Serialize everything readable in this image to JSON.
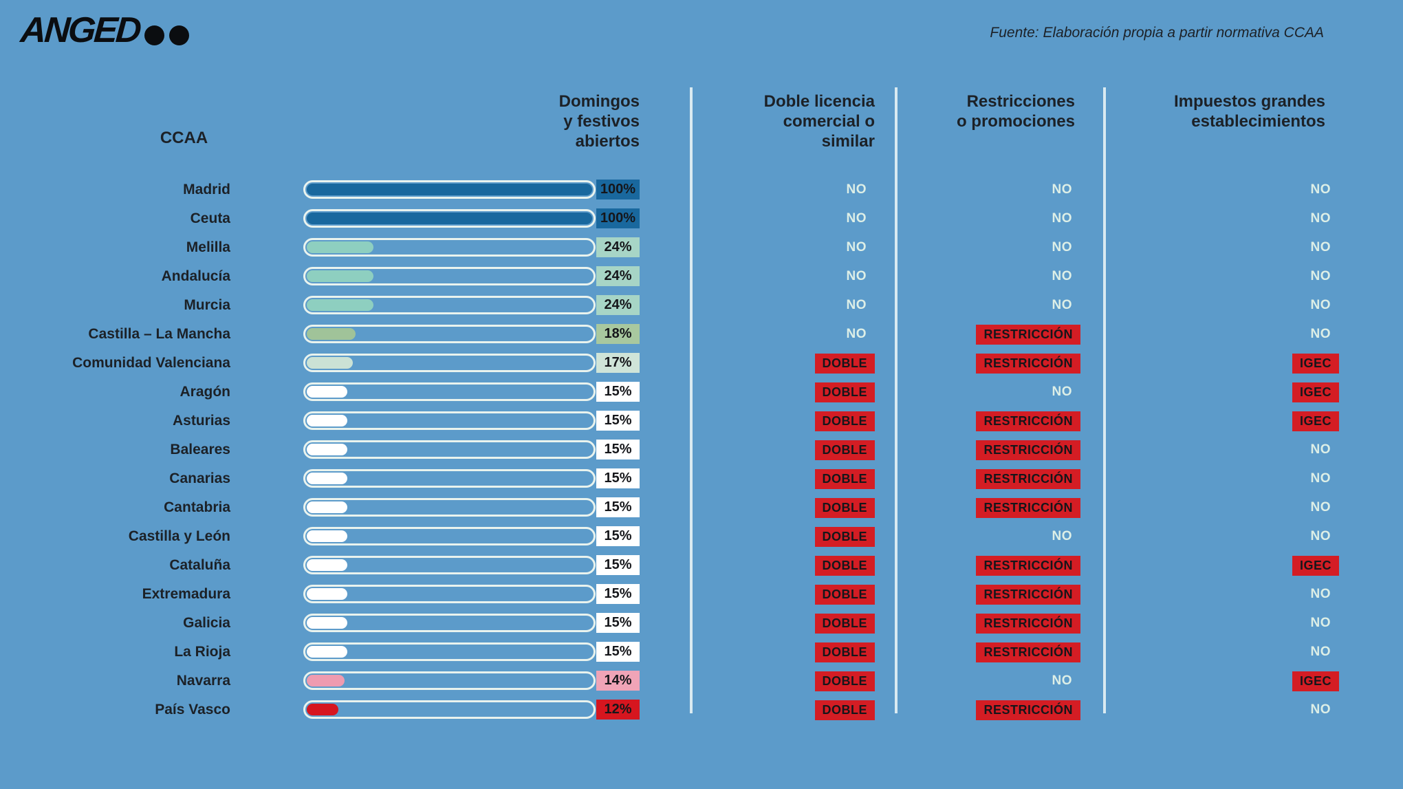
{
  "page": {
    "background": "#5c9bca",
    "separator_color": "#d9eaf1",
    "no_text_color": "#ddefe7",
    "flag_red": "#d41d24"
  },
  "header": {
    "logo_text": "ANGED",
    "source_note": "Fuente: Elaboración propia a partir normativa CCAA"
  },
  "table": {
    "columns": {
      "ccaa": "CCAA",
      "open_days": "Domingos\ny festivos\nabiertos",
      "doble": "Doble licencia\ncomercial o\nsimilar",
      "restricciones": "Restricciones\no promociones",
      "impuestos": "Impuestos grandes\nestablecimientos"
    }
  },
  "chart_data": {
    "type": "bar",
    "title": "Domingos y festivos abiertos",
    "xlabel": "",
    "ylabel": "",
    "xlim": [
      0,
      100
    ],
    "categories": [
      "Madrid",
      "Ceuta",
      "Melilla",
      "Andalucía",
      "Murcia",
      "Castilla – La Mancha",
      "Comunidad Valenciana",
      "Aragón",
      "Asturias",
      "Baleares",
      "Canarias",
      "Cantabria",
      "Castilla y León",
      "Cataluña",
      "Extremadura",
      "Galicia",
      "La Rioja",
      "Navarra",
      "País Vasco"
    ],
    "values": [
      100,
      100,
      24,
      24,
      24,
      18,
      17,
      15,
      15,
      15,
      15,
      15,
      15,
      15,
      15,
      15,
      15,
      14,
      12
    ],
    "rows": [
      {
        "name": "Madrid",
        "pct": 100,
        "pct_label": "100%",
        "fill": "#19689e",
        "badge_bg": "#19689e",
        "licencia": "NO",
        "restricciones": "NO",
        "impuestos": "NO"
      },
      {
        "name": "Ceuta",
        "pct": 100,
        "pct_label": "100%",
        "fill": "#19689e",
        "badge_bg": "#19689e",
        "licencia": "NO",
        "restricciones": "NO",
        "impuestos": "NO"
      },
      {
        "name": "Melilla",
        "pct": 24,
        "pct_label": "24%",
        "fill": "#8ecfc0",
        "badge_bg": "#a7d5c6",
        "licencia": "NO",
        "restricciones": "NO",
        "impuestos": "NO"
      },
      {
        "name": "Andalucía",
        "pct": 24,
        "pct_label": "24%",
        "fill": "#8ecfc0",
        "badge_bg": "#a7d5c6",
        "licencia": "NO",
        "restricciones": "NO",
        "impuestos": "NO"
      },
      {
        "name": "Murcia",
        "pct": 24,
        "pct_label": "24%",
        "fill": "#8ecfc0",
        "badge_bg": "#a7d5c6",
        "licencia": "NO",
        "restricciones": "NO",
        "impuestos": "NO"
      },
      {
        "name": "Castilla – La Mancha",
        "pct": 18,
        "pct_label": "18%",
        "fill": "#a0c399",
        "badge_bg": "#a8c89f",
        "licencia": "NO",
        "restricciones": "RESTRICCIÓN",
        "impuestos": "NO"
      },
      {
        "name": "Comunidad Valenciana",
        "pct": 17,
        "pct_label": "17%",
        "fill": "#cbe2d5",
        "badge_bg": "#cfe4d8",
        "licencia": "DOBLE",
        "restricciones": "RESTRICCIÓN",
        "impuestos": "IGEC"
      },
      {
        "name": "Aragón",
        "pct": 15,
        "pct_label": "15%",
        "fill": "#ffffff",
        "badge_bg": "#ffffff",
        "licencia": "DOBLE",
        "restricciones": "NO",
        "impuestos": "IGEC"
      },
      {
        "name": "Asturias",
        "pct": 15,
        "pct_label": "15%",
        "fill": "#ffffff",
        "badge_bg": "#ffffff",
        "licencia": "DOBLE",
        "restricciones": "RESTRICCIÓN",
        "impuestos": "IGEC"
      },
      {
        "name": "Baleares",
        "pct": 15,
        "pct_label": "15%",
        "fill": "#ffffff",
        "badge_bg": "#ffffff",
        "licencia": "DOBLE",
        "restricciones": "RESTRICCIÓN",
        "impuestos": "NO"
      },
      {
        "name": "Canarias",
        "pct": 15,
        "pct_label": "15%",
        "fill": "#ffffff",
        "badge_bg": "#ffffff",
        "licencia": "DOBLE",
        "restricciones": "RESTRICCIÓN",
        "impuestos": "NO"
      },
      {
        "name": "Cantabria",
        "pct": 15,
        "pct_label": "15%",
        "fill": "#ffffff",
        "badge_bg": "#ffffff",
        "licencia": "DOBLE",
        "restricciones": "RESTRICCIÓN",
        "impuestos": "NO"
      },
      {
        "name": "Castilla y León",
        "pct": 15,
        "pct_label": "15%",
        "fill": "#ffffff",
        "badge_bg": "#ffffff",
        "licencia": "DOBLE",
        "restricciones": "NO",
        "impuestos": "NO"
      },
      {
        "name": "Cataluña",
        "pct": 15,
        "pct_label": "15%",
        "fill": "#ffffff",
        "badge_bg": "#ffffff",
        "licencia": "DOBLE",
        "restricciones": "RESTRICCIÓN",
        "impuestos": "IGEC"
      },
      {
        "name": "Extremadura",
        "pct": 15,
        "pct_label": "15%",
        "fill": "#ffffff",
        "badge_bg": "#ffffff",
        "licencia": "DOBLE",
        "restricciones": "RESTRICCIÓN",
        "impuestos": "NO"
      },
      {
        "name": "Galicia",
        "pct": 15,
        "pct_label": "15%",
        "fill": "#ffffff",
        "badge_bg": "#ffffff",
        "licencia": "DOBLE",
        "restricciones": "RESTRICCIÓN",
        "impuestos": "NO"
      },
      {
        "name": "La Rioja",
        "pct": 15,
        "pct_label": "15%",
        "fill": "#ffffff",
        "badge_bg": "#ffffff",
        "licencia": "DOBLE",
        "restricciones": "RESTRICCIÓN",
        "impuestos": "NO"
      },
      {
        "name": "Navarra",
        "pct": 14,
        "pct_label": "14%",
        "fill": "#ee9bb0",
        "badge_bg": "#f0a4b7",
        "licencia": "DOBLE",
        "restricciones": "NO",
        "impuestos": "IGEC"
      },
      {
        "name": "País Vasco",
        "pct": 12,
        "pct_label": "12%",
        "fill": "#d6161f",
        "badge_bg": "#d6161f",
        "licencia": "DOBLE",
        "restricciones": "RESTRICCIÓN",
        "impuestos": "NO"
      }
    ]
  }
}
